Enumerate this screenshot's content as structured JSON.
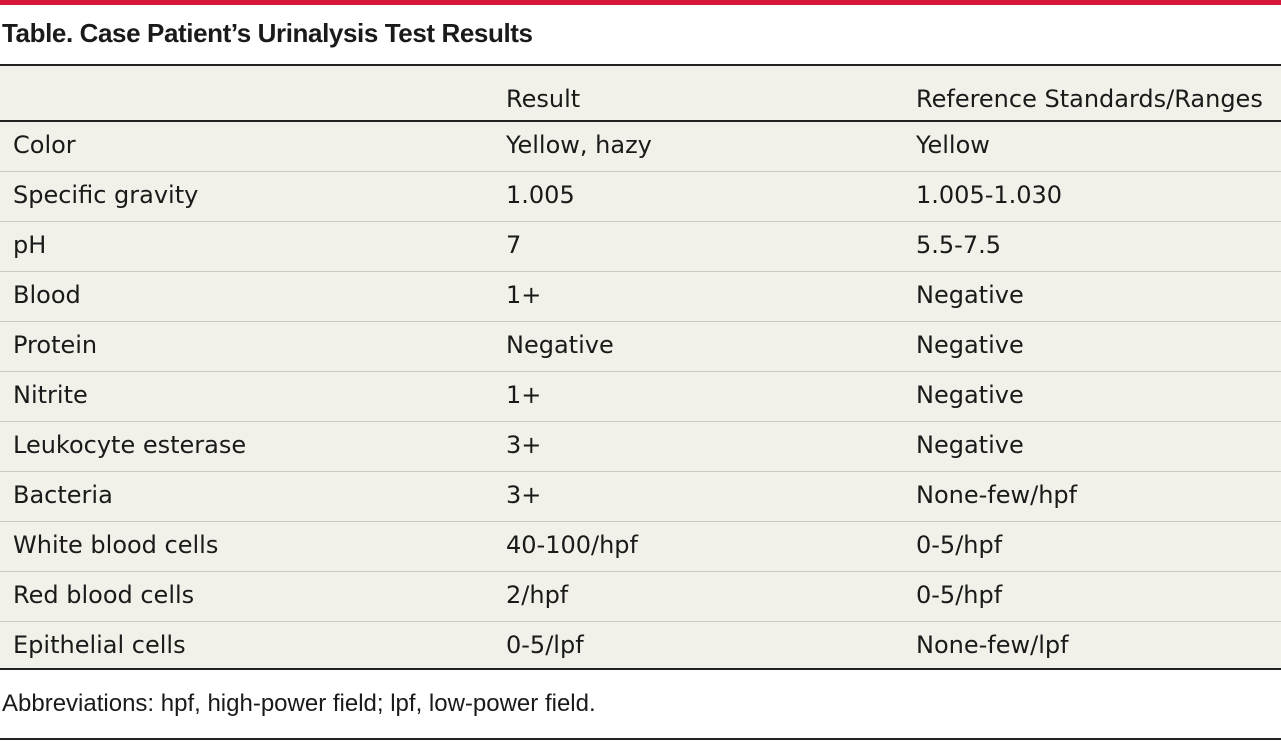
{
  "caption": "Table. Case Patient’s Urinalysis Test Results",
  "table": {
    "headers": [
      "",
      "Result",
      "Reference Standards/Ranges"
    ],
    "rows": [
      [
        "Color",
        "Yellow, hazy",
        "Yellow"
      ],
      [
        "Specific gravity",
        "1.005",
        "1.005-1.030"
      ],
      [
        "pH",
        "7",
        "5.5-7.5"
      ],
      [
        "Blood",
        "1+",
        "Negative"
      ],
      [
        "Protein",
        "Negative",
        "Negative"
      ],
      [
        "Nitrite",
        "1+",
        "Negative"
      ],
      [
        "Leukocyte esterase",
        "3+",
        "Negative"
      ],
      [
        "Bacteria",
        "3+",
        "None-few/hpf"
      ],
      [
        "White blood cells",
        "40-100/hpf",
        "0-5/hpf"
      ],
      [
        "Red blood cells",
        "2/hpf",
        "0-5/hpf"
      ],
      [
        "Epithelial cells",
        "0-5/lpf",
        "None-few/lpf"
      ]
    ]
  },
  "footnote": "Abbreviations: hpf, high-power field; lpf, low-power field.",
  "colors": {
    "accent_rule": "#d7173a",
    "table_background": "#f2f1e9"
  }
}
